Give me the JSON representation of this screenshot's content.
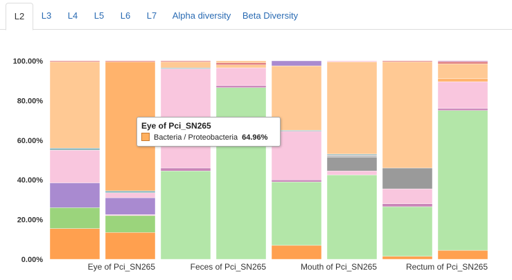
{
  "tabs": [
    {
      "label": "L2",
      "active": true
    },
    {
      "label": "L3",
      "active": false
    },
    {
      "label": "L4",
      "active": false
    },
    {
      "label": "L5",
      "active": false
    },
    {
      "label": "L6",
      "active": false
    },
    {
      "label": "L7",
      "active": false
    },
    {
      "label": "Alpha diversity",
      "active": false
    },
    {
      "label": "Beta Diversity",
      "active": false
    }
  ],
  "tooltip": {
    "title": "Eye of Pci_SN265",
    "label": "Bacteria / Proteobacteria",
    "value": "64.96%",
    "color": "#ffb060"
  },
  "chart_data": {
    "type": "bar",
    "stacked": true,
    "ylim": [
      0,
      100
    ],
    "yticks": [
      "0.00%",
      "20.00%",
      "40.00%",
      "60.00%",
      "80.00%",
      "100.00%"
    ],
    "xtick_labels": [
      "",
      "Eye of Pci_SN265",
      "",
      "Feces of Pci_SN265",
      "",
      "Mouth of Pci_SN265",
      "",
      "Rectum of Pci_SN265"
    ],
    "segment_colors": {
      "orange": "#ffa04f",
      "lime": "#9bd47c",
      "green": "#b3e6a8",
      "purple": "#a98ad0",
      "pink": "#f9c6de",
      "teal": "#8fb8bc",
      "peach": "#ffc994",
      "peach2": "#ffb36c",
      "gray": "#9a9a9a",
      "gray_light": "#c4c4c4",
      "red": "#e07a7a",
      "mauve": "#c984b8"
    },
    "bars": [
      {
        "segments": [
          {
            "value": 15.5,
            "color": "orange"
          },
          {
            "value": 10.5,
            "color": "lime"
          },
          {
            "value": 12.5,
            "color": "purple"
          },
          {
            "value": 16.5,
            "color": "pink"
          },
          {
            "value": 1.0,
            "color": "teal"
          },
          {
            "value": 43.5,
            "color": "peach"
          },
          {
            "value": 0.5,
            "color": "red"
          }
        ]
      },
      {
        "segments": [
          {
            "value": 13.5,
            "color": "orange"
          },
          {
            "value": 8.5,
            "color": "lime"
          },
          {
            "value": 0.5,
            "color": "pink"
          },
          {
            "value": 8.5,
            "color": "purple"
          },
          {
            "value": 2.5,
            "color": "pink"
          },
          {
            "value": 1.0,
            "color": "teal"
          },
          {
            "value": 65.0,
            "color": "peach2"
          },
          {
            "value": 0.5,
            "color": "red"
          }
        ]
      },
      {
        "segments": [
          {
            "value": 44.5,
            "color": "green"
          },
          {
            "value": 1.5,
            "color": "mauve"
          },
          {
            "value": 50.0,
            "color": "pink"
          },
          {
            "value": 0.5,
            "color": "teal"
          },
          {
            "value": 3.0,
            "color": "peach"
          },
          {
            "value": 0.5,
            "color": "red"
          }
        ]
      },
      {
        "segments": [
          {
            "value": 86.5,
            "color": "green"
          },
          {
            "value": 1.0,
            "color": "mauve"
          },
          {
            "value": 9.0,
            "color": "pink"
          },
          {
            "value": 1.5,
            "color": "peach"
          },
          {
            "value": 1.0,
            "color": "red"
          },
          {
            "value": 1.0,
            "color": "peach"
          }
        ]
      },
      {
        "segments": [
          {
            "value": 7.0,
            "color": "orange"
          },
          {
            "value": 32.0,
            "color": "green"
          },
          {
            "value": 1.0,
            "color": "mauve"
          },
          {
            "value": 24.5,
            "color": "pink"
          },
          {
            "value": 0.5,
            "color": "teal"
          },
          {
            "value": 32.5,
            "color": "peach"
          },
          {
            "value": 2.5,
            "color": "purple"
          }
        ]
      },
      {
        "segments": [
          {
            "value": 42.5,
            "color": "green"
          },
          {
            "value": 2.0,
            "color": "pink"
          },
          {
            "value": 7.0,
            "color": "gray"
          },
          {
            "value": 1.0,
            "color": "gray_light"
          },
          {
            "value": 0.5,
            "color": "teal"
          },
          {
            "value": 46.5,
            "color": "peach"
          },
          {
            "value": 0.5,
            "color": "pink"
          }
        ]
      },
      {
        "segments": [
          {
            "value": 1.5,
            "color": "orange"
          },
          {
            "value": 25.0,
            "color": "green"
          },
          {
            "value": 1.5,
            "color": "mauve"
          },
          {
            "value": 7.5,
            "color": "pink"
          },
          {
            "value": 10.5,
            "color": "gray"
          },
          {
            "value": 53.5,
            "color": "peach"
          },
          {
            "value": 0.5,
            "color": "red"
          }
        ]
      },
      {
        "segments": [
          {
            "value": 4.5,
            "color": "orange"
          },
          {
            "value": 70.5,
            "color": "green"
          },
          {
            "value": 1.0,
            "color": "mauve"
          },
          {
            "value": 13.5,
            "color": "pink"
          },
          {
            "value": 1.5,
            "color": "peach2"
          },
          {
            "value": 7.5,
            "color": "peach"
          },
          {
            "value": 1.0,
            "color": "red"
          },
          {
            "value": 0.5,
            "color": "mauve"
          }
        ]
      }
    ]
  }
}
